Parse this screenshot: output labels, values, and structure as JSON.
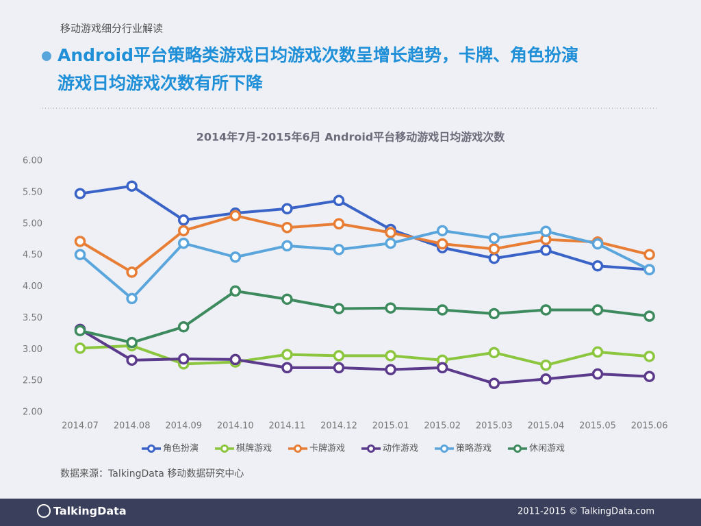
{
  "header": {
    "section": "移动游戏细分行业解读",
    "title_lines": [
      "Android平台策略类游戏日均游戏次数呈增长趋势，卡牌、角色扮演",
      "游戏日均游戏次数有所下降"
    ]
  },
  "chart_data": {
    "type": "line",
    "title": "2014年7月-2015年6月 Android平台移动游戏日均游戏次数",
    "categories": [
      "2014.07",
      "2014.08",
      "2014.09",
      "2014.10",
      "2014.11",
      "2014.12",
      "2015.01",
      "2015.02",
      "2015.03",
      "2015.04",
      "2015.05",
      "2015.06"
    ],
    "series": [
      {
        "name": "角色扮演",
        "color": "#3a63c8",
        "values": [
          5.48,
          5.6,
          5.06,
          5.17,
          5.24,
          5.37,
          4.91,
          4.62,
          4.45,
          4.58,
          4.33,
          4.27
        ]
      },
      {
        "name": "棋牌游戏",
        "color": "#8cc63f",
        "values": [
          3.02,
          3.06,
          2.77,
          2.8,
          2.92,
          2.9,
          2.9,
          2.83,
          2.95,
          2.75,
          2.96,
          2.89
        ]
      },
      {
        "name": "卡牌游戏",
        "color": "#e87e35",
        "values": [
          4.72,
          4.23,
          4.89,
          5.13,
          4.94,
          5.0,
          4.86,
          4.68,
          4.6,
          4.75,
          4.71,
          4.51
        ]
      },
      {
        "name": "动作游戏",
        "color": "#5b3a8c",
        "values": [
          3.32,
          2.83,
          2.85,
          2.84,
          2.71,
          2.71,
          2.68,
          2.71,
          2.46,
          2.53,
          2.61,
          2.57
        ]
      },
      {
        "name": "策略游戏",
        "color": "#5aa5dc",
        "values": [
          4.51,
          3.81,
          4.69,
          4.47,
          4.65,
          4.59,
          4.69,
          4.89,
          4.77,
          4.88,
          4.68,
          4.27
        ]
      },
      {
        "name": "休闲游戏",
        "color": "#3d8a5e",
        "values": [
          3.3,
          3.11,
          3.36,
          3.93,
          3.8,
          3.65,
          3.66,
          3.63,
          3.57,
          3.63,
          3.63,
          3.53
        ]
      }
    ],
    "ylim": [
      2,
      6
    ],
    "yticks": [
      {
        "value": 2,
        "label": "2.00"
      },
      {
        "value": 2.5,
        "label": "2.50"
      },
      {
        "value": 3,
        "label": "3.00"
      },
      {
        "value": 3.5,
        "label": "3.50"
      },
      {
        "value": 4,
        "label": "4.00"
      },
      {
        "value": 4.5,
        "label": "4.50"
      },
      {
        "value": 5,
        "label": "5.00"
      },
      {
        "value": 5.5,
        "label": "5.50"
      },
      {
        "value": 6,
        "label": "6.00"
      }
    ],
    "grid": false,
    "legend": "bottom"
  },
  "source": "数据来源：TalkingData 移动数据研究中心",
  "footer": {
    "logo": "TalkingData",
    "copyright": "2011-2015 © TalkingData.com"
  }
}
